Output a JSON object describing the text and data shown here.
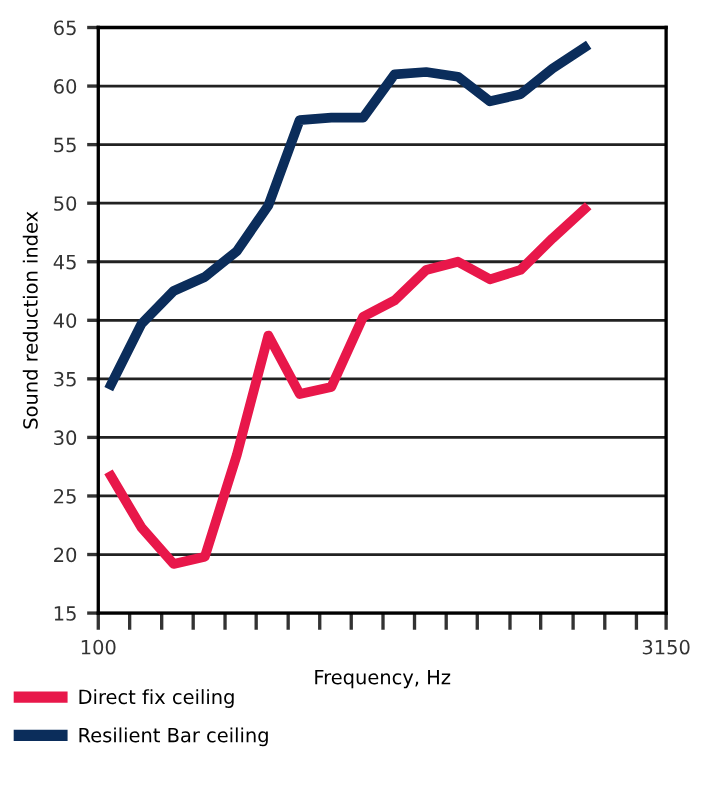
{
  "chart_data": {
    "type": "line",
    "xlabel": "Frequency, Hz",
    "ylabel": "Sound reduction index",
    "log": "x",
    "x": [
      108,
      130,
      158,
      191,
      232,
      281,
      340,
      412,
      500,
      605,
      733,
      889,
      1080,
      1300,
      1580,
      1920
    ],
    "series": [
      {
        "name": "Direct fix ceiling",
        "color": "#e8174a",
        "values": [
          26.7,
          22.3,
          19.2,
          19.8,
          28.5,
          38.7,
          33.7,
          34.3,
          40.3,
          41.7,
          44.3,
          45,
          43.5,
          44.3,
          47,
          49.5
        ]
      },
      {
        "name": "Resilient Bar ceiling",
        "color": "#0b2d5b",
        "values": [
          34.5,
          39.7,
          42.5,
          43.7,
          45.9,
          49.8,
          57.1,
          57.3,
          57.3,
          61,
          61.2,
          60.8,
          58.7,
          59.3,
          61.5,
          63.3
        ]
      }
    ],
    "xlim": [
      100,
      3150
    ],
    "xticks": [
      100,
      {
        "value": 121,
        "label": null
      },
      {
        "value": 147,
        "label": null
      },
      {
        "value": 178,
        "label": null
      },
      {
        "value": 216,
        "label": null
      },
      {
        "value": 261,
        "label": null
      },
      {
        "value": 317,
        "label": null
      },
      {
        "value": 384,
        "label": null
      },
      {
        "value": 465,
        "label": null
      },
      {
        "value": 564,
        "label": null
      },
      {
        "value": 683,
        "label": null
      },
      {
        "value": 828,
        "label": null
      },
      {
        "value": 1000,
        "label": null
      },
      {
        "value": 1220,
        "label": null
      },
      {
        "value": 1470,
        "label": null
      },
      {
        "value": 1790,
        "label": null
      },
      {
        "value": 2170,
        "label": null
      },
      {
        "value": 2630,
        "label": null
      },
      3150
    ],
    "ylim": [
      15,
      65
    ],
    "yticks": [
      15,
      20,
      25,
      30,
      35,
      40,
      45,
      50,
      55,
      60,
      65
    ],
    "grid": "y",
    "legend": "bottom left",
    "marker": "none",
    "line_style": "solid"
  }
}
